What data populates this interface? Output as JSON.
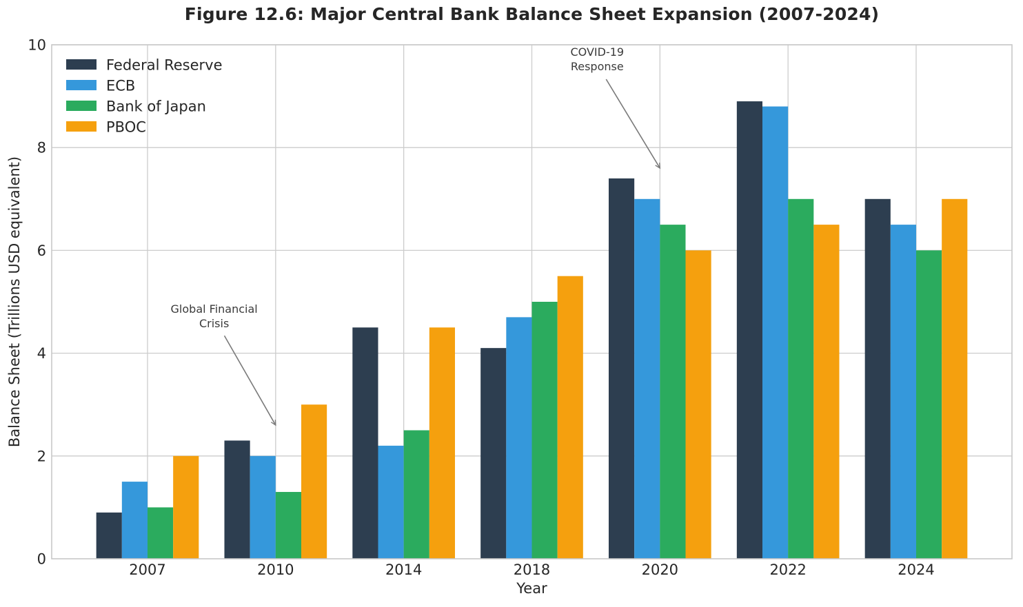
{
  "figure": {
    "title": "Figure 12.6: Major Central Bank Balance Sheet Expansion (2007-2024)",
    "xlabel": "Year",
    "ylabel": "Balance Sheet (Trillions USD equivalent)"
  },
  "chart_data": {
    "type": "bar",
    "title": "Figure 12.6: Major Central Bank Balance Sheet Expansion (2007-2024)",
    "xlabel": "Year",
    "ylabel": "Balance Sheet (Trillions USD equivalent)",
    "categories": [
      "2007",
      "2010",
      "2014",
      "2018",
      "2020",
      "2022",
      "2024"
    ],
    "series": [
      {
        "name": "Federal Reserve",
        "color": "#2d3e50",
        "values": [
          0.9,
          2.3,
          4.5,
          4.1,
          7.4,
          8.9,
          7.0
        ]
      },
      {
        "name": "ECB",
        "color": "#3598db",
        "values": [
          1.5,
          2.0,
          2.2,
          4.7,
          7.0,
          8.8,
          6.5
        ]
      },
      {
        "name": "Bank of Japan",
        "color": "#2bab5e",
        "values": [
          1.0,
          1.3,
          2.5,
          5.0,
          6.5,
          7.0,
          6.0
        ]
      },
      {
        "name": "PBOC",
        "color": "#f5a00e",
        "values": [
          2.0,
          3.0,
          4.5,
          5.5,
          6.0,
          6.5,
          7.0
        ]
      }
    ],
    "ylim": [
      0,
      10
    ],
    "yticks": [
      0,
      2,
      4,
      6,
      8,
      10
    ],
    "grid": true,
    "legend_position": "upper left",
    "annotations": [
      {
        "lines": [
          "Global Financial",
          "Crisis"
        ],
        "text_pos": {
          "x_index": 0.52,
          "y": 4.72
        },
        "arrow_from": {
          "x_index": 0.6,
          "y": 4.34
        },
        "arrow_to": {
          "x_index": 1.0,
          "y": 2.6
        }
      },
      {
        "lines": [
          "COVID-19",
          "Response"
        ],
        "text_pos": {
          "x_index": 3.51,
          "y": 9.72
        },
        "arrow_from": {
          "x_index": 3.58,
          "y": 9.33
        },
        "arrow_to": {
          "x_index": 4.0,
          "y": 7.6
        }
      }
    ],
    "style": {
      "grid_color": "#cccccc",
      "spine_color": "#c8c8c8",
      "tick_label_color": "#262626",
      "annotation_text_color": "#3a3a3a",
      "arrow_color": "#7a7a7a"
    }
  }
}
